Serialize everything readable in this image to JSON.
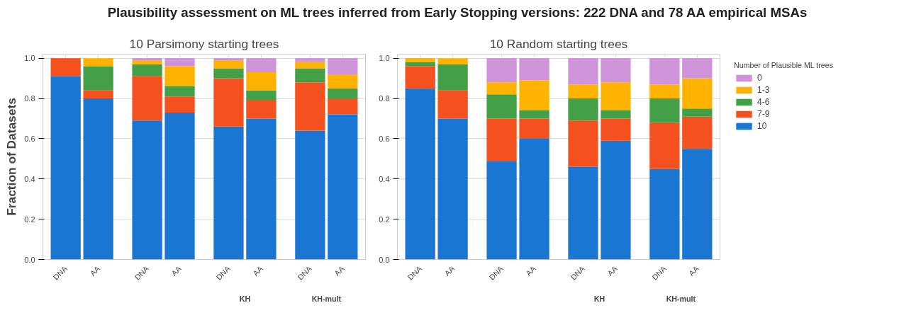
{
  "chart_data": [
    {
      "type": "bar",
      "stacked": true,
      "title": "Plausibility assessment on ML trees inferred from Early Stopping versions: 222 DNA and 78 AA empirical MSAs",
      "subtitle": "10 Parsimony starting trees",
      "ylabel": "Fraction of Datasets",
      "categories": [
        "DNA",
        "AA",
        "DNA",
        "AA",
        "DNA",
        "AA",
        "DNA",
        "AA"
      ],
      "annotations": [
        "KH",
        "KH-mult"
      ],
      "series": [
        {
          "color": "#1976d2",
          "values": [
            0.91,
            0.8,
            0.69,
            0.73,
            0.66,
            0.7,
            0.64,
            0.72
          ]
        },
        {
          "color": "#f4511e",
          "values": [
            0.09,
            0.04,
            0.22,
            0.08,
            0.24,
            0.09,
            0.24,
            0.08
          ]
        },
        {
          "color": "#43a047",
          "values": [
            0,
            0.12,
            0.06,
            0.05,
            0.05,
            0.05,
            0.07,
            0.05
          ]
        },
        {
          "color": "#ffb300",
          "values": [
            0,
            0.04,
            0.02,
            0.1,
            0.04,
            0.09,
            0.03,
            0.07
          ]
        },
        {
          "color": "#ce93d8",
          "values": [
            0,
            0,
            0.01,
            0.04,
            0.01,
            0.07,
            0.02,
            0.08
          ]
        }
      ],
      "ylim": [
        0,
        1.02
      ],
      "yticks": [
        {
          "value": 0,
          "label": "0.0"
        },
        {
          "value": 0.2,
          "label": "0.2"
        },
        {
          "value": 0.4,
          "label": "0.4"
        },
        {
          "value": 0.6,
          "label": "0.6"
        },
        {
          "value": 0.8,
          "label": "0.8"
        },
        {
          "value": 1,
          "label": "1.0"
        }
      ],
      "grid": true
    },
    {
      "type": "bar",
      "stacked": true,
      "subtitle": "10 Random starting trees",
      "legend_title": "Number of Plausible ML trees",
      "categories": [
        "DNA",
        "AA",
        "DNA",
        "AA",
        "DNA",
        "AA",
        "DNA",
        "AA"
      ],
      "annotations": [
        "KH",
        "KH-mult"
      ],
      "series": [
        {
          "name": "10",
          "color": "#1976d2",
          "values": [
            0.85,
            0.7,
            0.49,
            0.6,
            0.46,
            0.59,
            0.45,
            0.55
          ]
        },
        {
          "name": "7-9",
          "color": "#f4511e",
          "values": [
            0.11,
            0.14,
            0.21,
            0.1,
            0.23,
            0.11,
            0.23,
            0.16
          ]
        },
        {
          "name": "4-6",
          "color": "#43a047",
          "values": [
            0.02,
            0.13,
            0.12,
            0.04,
            0.11,
            0.04,
            0.12,
            0.04
          ]
        },
        {
          "name": "1-3",
          "color": "#ffb300",
          "values": [
            0.02,
            0.03,
            0.06,
            0.15,
            0.07,
            0.14,
            0.07,
            0.15
          ]
        },
        {
          "name": "0",
          "color": "#ce93d8",
          "values": [
            0,
            0,
            0.12,
            0.11,
            0.13,
            0.12,
            0.13,
            0.1
          ]
        }
      ],
      "ylim": [
        0,
        1.02
      ],
      "yticks": [
        {
          "value": 0,
          "label": "0.0"
        },
        {
          "value": 0.2,
          "label": "0.2"
        },
        {
          "value": 0.4,
          "label": "0.4"
        },
        {
          "value": 0.6,
          "label": "0.6"
        },
        {
          "value": 0.8,
          "label": "0.8"
        },
        {
          "value": 1,
          "label": "1.0"
        }
      ],
      "grid": true,
      "legend": "right"
    }
  ]
}
